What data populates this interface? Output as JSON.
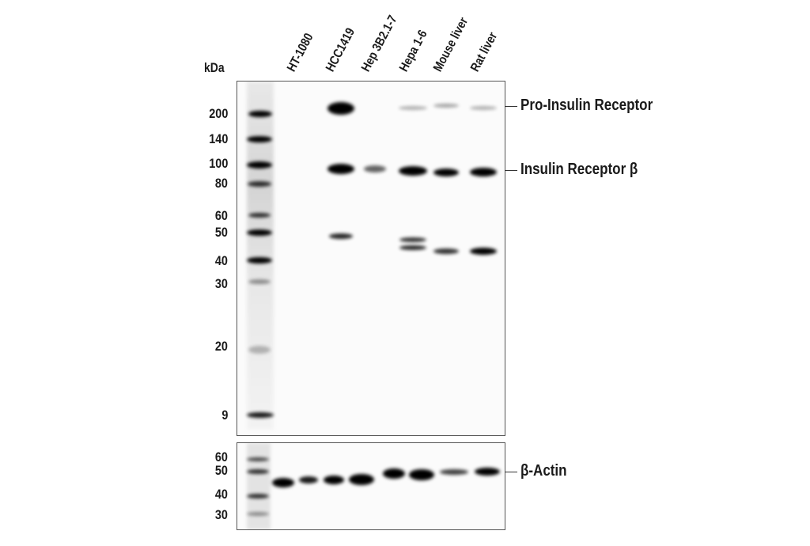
{
  "kda_label": "kDa",
  "lanes": [
    "HT-1080",
    "HCC1419",
    "Hep 3B2.1-7",
    "Hepa 1-6",
    "Mouse liver",
    "Rat liver"
  ],
  "top_markers": [
    "200",
    "140",
    "100",
    "80",
    "60",
    "50",
    "40",
    "30",
    "20",
    "9"
  ],
  "bottom_markers": [
    "60",
    "50",
    "40",
    "30"
  ],
  "band_labels": {
    "pro_insulin_receptor": "Pro-Insulin Receptor",
    "insulin_receptor_beta": "Insulin Receptor β",
    "beta_actin": "β-Actin"
  }
}
